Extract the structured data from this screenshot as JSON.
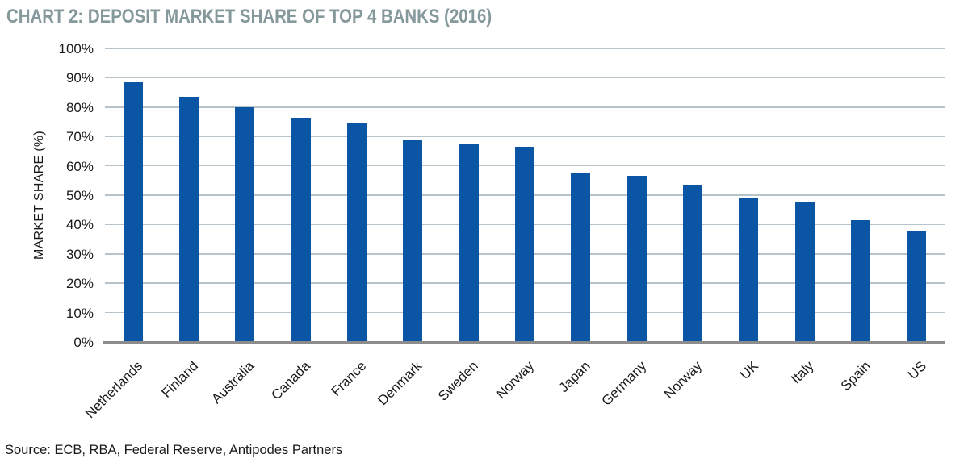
{
  "page": {
    "source": "Source: ECB, RBA, Federal Reserve, Antipodes Partners"
  },
  "colors": {
    "bar": "#0A56A4",
    "gridline": "#B7C3C9",
    "axis_line": "#8C8C8C",
    "title": "#85989B",
    "text": "#1A1A1A"
  },
  "chart_data": {
    "type": "bar",
    "title": "CHART 2:  DEPOSIT MARKET SHARE OF TOP 4 BANKS (2016)",
    "xlabel": "",
    "ylabel": "MARKET SHARE (%)",
    "ylim": [
      0,
      100
    ],
    "grid": true,
    "legend": false,
    "categories": [
      "Netherlands",
      "Finland",
      "Australia",
      "Canada",
      "France",
      "Denmark",
      "Sweden",
      "Norway",
      "Japan",
      "Germany",
      "Norway",
      "UK",
      "Italy",
      "Spain",
      "US"
    ],
    "values": [
      88.5,
      83.5,
      80,
      76.5,
      74.5,
      69,
      67.5,
      66.5,
      57.5,
      56.5,
      53.5,
      49,
      47.5,
      41.5,
      38
    ],
    "yticks": [
      {
        "v": 0,
        "label": "0%"
      },
      {
        "v": 10,
        "label": "10%"
      },
      {
        "v": 20,
        "label": "20%"
      },
      {
        "v": 30,
        "label": "30%"
      },
      {
        "v": 40,
        "label": "40%"
      },
      {
        "v": 50,
        "label": "50%"
      },
      {
        "v": 60,
        "label": "60%"
      },
      {
        "v": 70,
        "label": "70%"
      },
      {
        "v": 80,
        "label": "80%"
      },
      {
        "v": 90,
        "label": "90%"
      },
      {
        "v": 100,
        "label": "100%"
      }
    ]
  }
}
